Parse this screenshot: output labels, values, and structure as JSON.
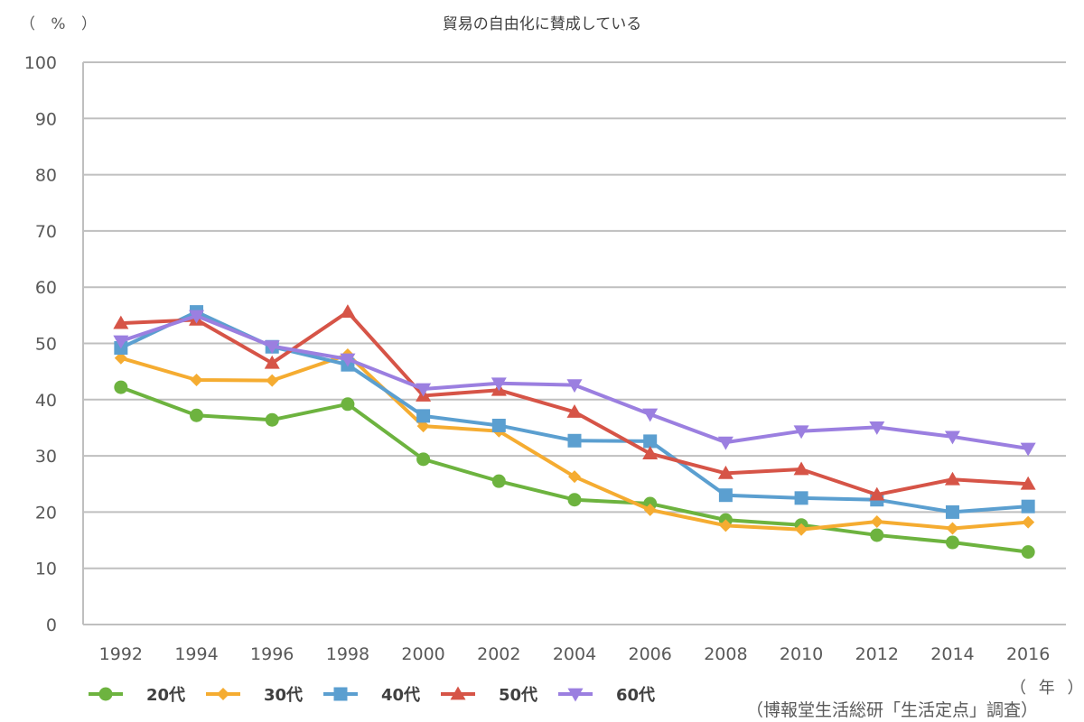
{
  "chart_data": {
    "type": "line",
    "title": "貿易の自由化に賛成している",
    "ylabel": "（ % ）",
    "xlabel": "（ 年 ）",
    "source": "（博報堂生活総研「生活定点」調査）",
    "ylim": [
      0,
      100
    ],
    "yticks": [
      0,
      10,
      20,
      30,
      40,
      50,
      60,
      70,
      80,
      90,
      100
    ],
    "grid": true,
    "legend_position": "bottom-left",
    "categories": [
      "1992",
      "1994",
      "1996",
      "1998",
      "2000",
      "2002",
      "2004",
      "2006",
      "2008",
      "2010",
      "2012",
      "2014",
      "2016"
    ],
    "series": [
      {
        "name": "20代",
        "color": "#6DB33F",
        "marker": "circle",
        "values": [
          42.2,
          37.2,
          36.4,
          39.2,
          29.4,
          25.5,
          22.2,
          21.5,
          18.6,
          17.7,
          15.9,
          14.6,
          12.9
        ]
      },
      {
        "name": "30代",
        "color": "#F5AC31",
        "marker": "diamond",
        "values": [
          47.4,
          43.5,
          43.4,
          48.0,
          35.3,
          34.4,
          26.3,
          20.4,
          17.6,
          16.9,
          18.3,
          17.1,
          18.2
        ]
      },
      {
        "name": "40代",
        "color": "#5B9FD0",
        "marker": "square",
        "values": [
          49.2,
          55.6,
          49.4,
          46.2,
          37.1,
          35.4,
          32.7,
          32.6,
          23.0,
          22.5,
          22.2,
          20.0,
          21.0
        ]
      },
      {
        "name": "50代",
        "color": "#D65447",
        "marker": "triangle-up",
        "values": [
          53.6,
          54.2,
          46.5,
          55.6,
          40.7,
          41.7,
          37.8,
          30.4,
          26.9,
          27.6,
          23.1,
          25.8,
          25.0
        ]
      },
      {
        "name": "60代",
        "color": "#9B7FE0",
        "marker": "triangle-down",
        "values": [
          50.4,
          54.9,
          49.5,
          47.2,
          41.9,
          42.9,
          42.6,
          37.4,
          32.4,
          34.4,
          35.1,
          33.4,
          31.3
        ]
      }
    ]
  }
}
